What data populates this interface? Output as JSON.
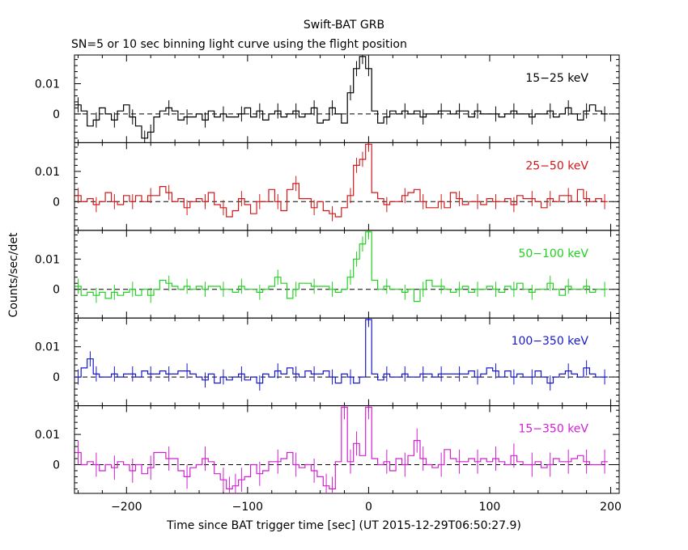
{
  "title": "Swift-BAT GRB",
  "subtitle": "SN=5 or 10 sec binning light curve using the flight position",
  "chart_data": {
    "type": "line",
    "title": "Swift-BAT GRB",
    "subtitle": "SN=5 or 10 sec binning light curve using the flight position",
    "xlabel": "Time since BAT trigger time [sec] (UT 2015-12-29T06:50:27.9)",
    "ylabel": "Counts/sec/det",
    "xlim": [
      -243,
      207
    ],
    "x_ticks": [
      "−200",
      "−100",
      "0",
      "100",
      "200"
    ],
    "x_tick_values": [
      -200,
      -100,
      0,
      100,
      200
    ],
    "ylim": [
      -0.0095,
      0.0195
    ],
    "y_ticks": [
      "0",
      "0.01"
    ],
    "y_tick_values": [
      0,
      0.01
    ],
    "panels": [
      {
        "name": "15−25 keV",
        "color": "#000000",
        "bin_width": 5,
        "x": [
          -240,
          -235,
          -230,
          -225,
          -220,
          -215,
          -210,
          -205,
          -200,
          -195,
          -190,
          -185,
          -180,
          -175,
          -170,
          -165,
          -160,
          -155,
          -150,
          -145,
          -140,
          -135,
          -130,
          -125,
          -120,
          -115,
          -110,
          -105,
          -100,
          -95,
          -90,
          -85,
          -80,
          -75,
          -70,
          -65,
          -60,
          -55,
          -50,
          -45,
          -40,
          -35,
          -30,
          -25,
          -20,
          -15,
          -10,
          -5,
          0,
          5,
          10,
          15,
          20,
          25,
          30,
          35,
          40,
          45,
          50,
          55,
          60,
          65,
          70,
          75,
          80,
          85,
          90,
          95,
          100,
          105,
          110,
          115,
          120,
          125,
          130,
          135,
          140,
          145,
          150,
          155,
          160,
          165,
          170,
          175,
          180,
          185,
          190,
          195
        ],
        "y": [
          0.003,
          0.001,
          -0.004,
          -0.002,
          0.002,
          0.0,
          -0.002,
          0.001,
          0.003,
          -0.001,
          -0.004,
          -0.008,
          -0.006,
          -0.001,
          0.001,
          0.002,
          0.001,
          -0.002,
          -0.001,
          -0.001,
          0.0,
          -0.002,
          0.001,
          -0.001,
          0.0,
          -0.001,
          -0.001,
          0.0,
          0.002,
          -0.001,
          0.001,
          -0.002,
          0.0,
          0.001,
          -0.001,
          0.0,
          0.001,
          -0.001,
          0.0,
          0.002,
          -0.003,
          -0.002,
          0.002,
          0.0,
          -0.003,
          0.007,
          0.015,
          0.019,
          0.015,
          0.001,
          -0.003,
          -0.001,
          0.001,
          0.0,
          0.001,
          0.0,
          0.001,
          -0.001,
          0.0,
          0.0,
          0.001,
          0.001,
          0.0,
          0.001,
          0.001,
          -0.001,
          0.001,
          0.0,
          0.0,
          0.0,
          -0.001,
          0.0,
          0.001,
          0.0,
          0.0,
          -0.001,
          0.0,
          0.0,
          0.001,
          -0.001,
          0.0,
          0.002,
          0.0,
          -0.002,
          0.001,
          0.003,
          0.001,
          0.0
        ],
        "err": 0.0025
      },
      {
        "name": "25−50 keV",
        "color": "#d01818",
        "bin_width": 5,
        "x": [
          -240,
          -235,
          -230,
          -225,
          -220,
          -215,
          -210,
          -205,
          -200,
          -195,
          -190,
          -185,
          -180,
          -175,
          -170,
          -165,
          -160,
          -155,
          -150,
          -145,
          -140,
          -135,
          -130,
          -125,
          -120,
          -115,
          -110,
          -105,
          -100,
          -95,
          -90,
          -85,
          -80,
          -75,
          -70,
          -65,
          -60,
          -55,
          -50,
          -45,
          -40,
          -35,
          -30,
          -25,
          -20,
          -15,
          -10,
          -5,
          0,
          5,
          10,
          15,
          20,
          25,
          30,
          35,
          40,
          45,
          50,
          55,
          60,
          65,
          70,
          75,
          80,
          85,
          90,
          95,
          100,
          105,
          110,
          115,
          120,
          125,
          130,
          135,
          140,
          145,
          150,
          155,
          160,
          165,
          170,
          175,
          180,
          185,
          190,
          195
        ],
        "y": [
          0.002,
          0.0,
          0.001,
          -0.001,
          0.0,
          0.003,
          0.0,
          -0.001,
          0.002,
          0.0,
          0.002,
          0.0,
          0.002,
          0.002,
          0.005,
          0.003,
          0.0,
          0.001,
          -0.002,
          0.0,
          0.001,
          0.0,
          0.003,
          -0.001,
          -0.002,
          -0.005,
          -0.003,
          0.001,
          -0.001,
          -0.004,
          0.0,
          0.0,
          0.004,
          0.0,
          -0.003,
          0.004,
          0.006,
          0.001,
          0.001,
          -0.002,
          0.0,
          -0.003,
          -0.004,
          -0.005,
          -0.002,
          0.002,
          0.012,
          0.014,
          0.019,
          0.003,
          0.001,
          -0.001,
          0.0,
          0.0,
          0.002,
          0.003,
          0.004,
          0.0,
          -0.002,
          -0.002,
          0.0,
          -0.002,
          0.003,
          0.001,
          -0.001,
          0.0,
          0.0,
          -0.001,
          0.001,
          0.0,
          0.0,
          0.001,
          -0.001,
          0.002,
          0.001,
          0.001,
          0.0,
          -0.002,
          0.001,
          0.0,
          0.002,
          0.002,
          0.0,
          0.004,
          0.001,
          0.0,
          0.001,
          0.0
        ],
        "err": 0.0025
      },
      {
        "name": "50−100 keV",
        "color": "#22d022",
        "bin_width": 5,
        "x": [
          -240,
          -235,
          -230,
          -225,
          -220,
          -215,
          -210,
          -205,
          -200,
          -195,
          -190,
          -185,
          -180,
          -175,
          -170,
          -165,
          -160,
          -155,
          -150,
          -145,
          -140,
          -135,
          -130,
          -125,
          -120,
          -115,
          -110,
          -105,
          -100,
          -95,
          -90,
          -85,
          -80,
          -75,
          -70,
          -65,
          -60,
          -55,
          -50,
          -45,
          -40,
          -35,
          -30,
          -25,
          -20,
          -15,
          -10,
          -5,
          0,
          5,
          10,
          15,
          20,
          25,
          30,
          35,
          40,
          45,
          50,
          55,
          60,
          65,
          70,
          75,
          80,
          85,
          90,
          95,
          100,
          105,
          110,
          115,
          120,
          125,
          130,
          135,
          140,
          145,
          150,
          155,
          160,
          165,
          170,
          175,
          180,
          185,
          190,
          195
        ],
        "y": [
          0.001,
          -0.002,
          -0.001,
          -0.002,
          -0.001,
          -0.003,
          -0.001,
          -0.002,
          -0.001,
          0.0,
          -0.002,
          0.0,
          -0.002,
          0.0,
          0.003,
          0.002,
          0.001,
          0.0,
          0.001,
          0.0,
          0.001,
          0.0,
          0.001,
          0.001,
          0.0,
          0.0,
          -0.001,
          0.001,
          0.0,
          0.0,
          -0.001,
          0.0,
          0.001,
          0.004,
          0.002,
          -0.003,
          0.0,
          0.002,
          0.002,
          0.001,
          0.001,
          0.001,
          0.0,
          -0.001,
          0.0,
          0.004,
          0.01,
          0.015,
          0.019,
          0.003,
          0.0,
          0.001,
          0.0,
          0.0,
          -0.001,
          0.0,
          -0.004,
          0.0,
          0.003,
          0.001,
          0.001,
          0.0,
          -0.001,
          0.0,
          0.001,
          -0.001,
          0.0,
          0.0,
          0.001,
          0.0,
          -0.001,
          0.001,
          0.0,
          0.002,
          0.0,
          -0.001,
          0.0,
          0.0,
          0.002,
          0.0,
          -0.002,
          0.001,
          0.0,
          0.0,
          0.001,
          -0.001,
          0.0,
          0.0
        ],
        "err": 0.0025
      },
      {
        "name": "100−350 keV",
        "color": "#1818c8",
        "bin_width": 5,
        "x": [
          -240,
          -235,
          -230,
          -225,
          -220,
          -215,
          -210,
          -205,
          -200,
          -195,
          -190,
          -185,
          -180,
          -175,
          -170,
          -165,
          -160,
          -155,
          -150,
          -145,
          -140,
          -135,
          -130,
          -125,
          -120,
          -115,
          -110,
          -105,
          -100,
          -95,
          -90,
          -85,
          -80,
          -75,
          -70,
          -65,
          -60,
          -55,
          -50,
          -45,
          -40,
          -35,
          -30,
          -25,
          -20,
          -15,
          -10,
          -5,
          0,
          5,
          10,
          15,
          20,
          25,
          30,
          35,
          40,
          45,
          50,
          55,
          60,
          65,
          70,
          75,
          80,
          85,
          90,
          95,
          100,
          105,
          110,
          115,
          120,
          125,
          130,
          135,
          140,
          145,
          150,
          155,
          160,
          165,
          170,
          175,
          180,
          185,
          190,
          195
        ],
        "y": [
          0.0,
          0.003,
          0.006,
          0.001,
          0.0,
          0.0,
          0.001,
          0.0,
          0.001,
          0.001,
          0.0,
          0.002,
          0.001,
          0.001,
          0.002,
          0.001,
          0.001,
          0.002,
          0.002,
          0.001,
          0.0,
          -0.001,
          0.001,
          -0.002,
          0.0,
          -0.001,
          0.0,
          0.001,
          -0.001,
          0.0,
          -0.002,
          0.001,
          0.0,
          0.002,
          0.001,
          0.003,
          0.001,
          0.0,
          0.002,
          0.001,
          0.001,
          0.002,
          0.0,
          -0.002,
          0.001,
          0.0,
          -0.002,
          0.0,
          0.019,
          0.001,
          -0.001,
          0.001,
          0.0,
          0.0,
          0.001,
          0.0,
          0.0,
          0.001,
          0.001,
          0.0,
          0.001,
          0.001,
          0.001,
          0.001,
          0.001,
          0.002,
          0.0,
          0.001,
          0.003,
          0.002,
          0.0,
          0.002,
          0.0,
          0.001,
          0.0,
          0.0,
          0.002,
          0.0,
          -0.002,
          0.0,
          0.001,
          0.002,
          0.001,
          0.0,
          0.003,
          0.001,
          0.0,
          0.0
        ],
        "err": 0.0025
      },
      {
        "name": "15−350 keV",
        "color": "#d020d0",
        "bin_width": 5,
        "x": [
          -240,
          -235,
          -230,
          -225,
          -220,
          -215,
          -210,
          -205,
          -200,
          -195,
          -190,
          -185,
          -180,
          -175,
          -170,
          -165,
          -160,
          -155,
          -150,
          -145,
          -140,
          -135,
          -130,
          -125,
          -120,
          -115,
          -110,
          -105,
          -100,
          -95,
          -90,
          -85,
          -80,
          -75,
          -70,
          -65,
          -60,
          -55,
          -50,
          -45,
          -40,
          -35,
          -30,
          -25,
          -20,
          -15,
          -10,
          -5,
          0,
          5,
          10,
          15,
          20,
          25,
          30,
          35,
          40,
          45,
          50,
          55,
          60,
          65,
          70,
          75,
          80,
          85,
          90,
          95,
          100,
          105,
          110,
          115,
          120,
          125,
          130,
          135,
          140,
          145,
          150,
          155,
          160,
          165,
          170,
          175,
          180,
          185,
          190,
          195
        ],
        "y": [
          0.004,
          0.0,
          0.001,
          0.0,
          -0.002,
          0.0,
          -0.001,
          0.001,
          0.0,
          -0.002,
          0.0,
          -0.003,
          -0.001,
          0.004,
          0.004,
          0.002,
          0.002,
          -0.002,
          -0.004,
          -0.001,
          0.0,
          0.002,
          0.001,
          -0.003,
          -0.005,
          -0.008,
          -0.007,
          -0.005,
          -0.004,
          0.0,
          -0.003,
          -0.002,
          0.001,
          0.001,
          0.002,
          0.004,
          0.0,
          -0.001,
          0.0,
          -0.002,
          -0.004,
          -0.007,
          -0.008,
          0.001,
          0.019,
          0.001,
          0.007,
          0.003,
          0.019,
          0.002,
          0.0,
          0.001,
          -0.002,
          0.002,
          0.0,
          0.003,
          0.008,
          0.002,
          0.0,
          -0.001,
          0.0,
          0.005,
          0.002,
          0.001,
          0.001,
          0.002,
          0.001,
          0.002,
          0.001,
          0.002,
          0.001,
          0.0,
          0.003,
          0.001,
          0.0,
          0.0,
          0.001,
          -0.001,
          0.0,
          0.002,
          0.001,
          0.001,
          0.002,
          0.003,
          0.001,
          0.0,
          0.0,
          0.001
        ],
        "err": 0.004
      }
    ]
  }
}
